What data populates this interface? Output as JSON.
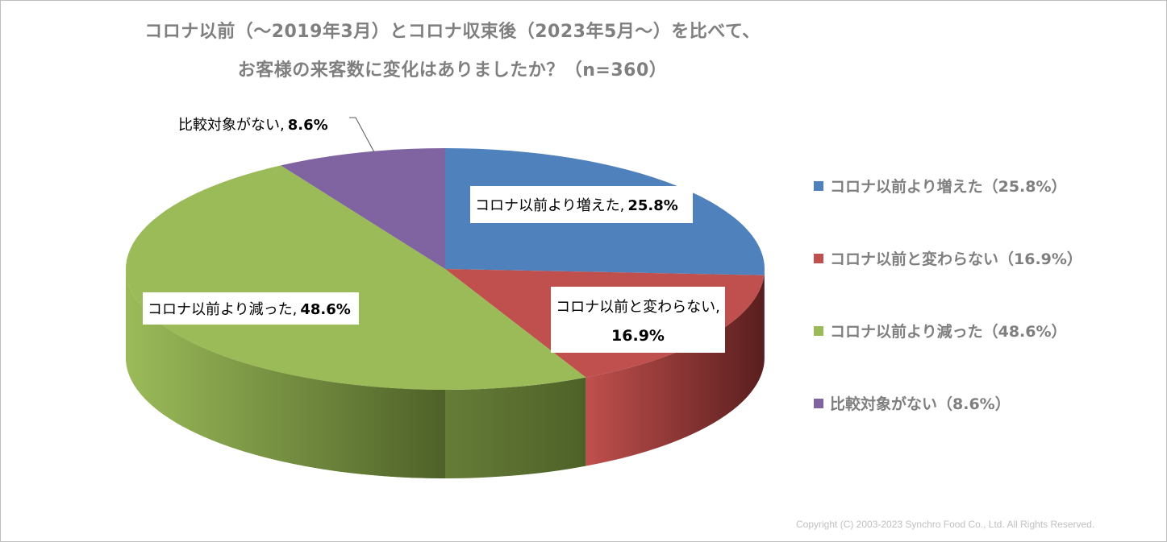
{
  "title_line1": "コロナ以前（～2019年3月）とコロナ収束後（2023年5月～）を比べて、",
  "title_line2": "お客様の来客数に変化はありましたか？（n=360）",
  "copyright": "Copyright (C) 2003-2023   Synchro Food Co., Ltd. All Rights Reserved.",
  "chart_data": {
    "type": "pie",
    "title": "コロナ以前（～2019年3月）とコロナ収束後（2023年5月～）を比べて、お客様の来客数に変化はありましたか？（n=360）",
    "n": 360,
    "slices": [
      {
        "category": "コロナ以前より増えた",
        "value": 25.8,
        "color": "#4f81bd",
        "side_color": "#2f4f78",
        "data_label_name": "コロナ以前より増えた,",
        "data_label_value": "25.8%",
        "legend": "コロナ以前より増えた（25.8%）"
      },
      {
        "category": "コロナ以前と変わらない",
        "value": 16.9,
        "color": "#c0504d",
        "side_color": "#5a1e1e",
        "data_label_name": "コロナ以前と変わらない,",
        "data_label_value": "16.9%",
        "legend": "コロナ以前と変わらない（16.9%）"
      },
      {
        "category": "コロナ以前より減った",
        "value": 48.6,
        "color": "#9bbb59",
        "side_color": "#4e6128",
        "data_label_name": "コロナ以前より減った,",
        "data_label_value": "48.6%",
        "legend": "コロナ以前より減った（48.6%）"
      },
      {
        "category": "比較対象がない",
        "value": 8.6,
        "color": "#8064a2",
        "side_color": "#43335a",
        "data_label_name": "比較対象がない,",
        "data_label_value": "8.6%",
        "legend": "比較対象がない（8.6%）"
      }
    ],
    "legend_position": "right",
    "three_d": true
  }
}
